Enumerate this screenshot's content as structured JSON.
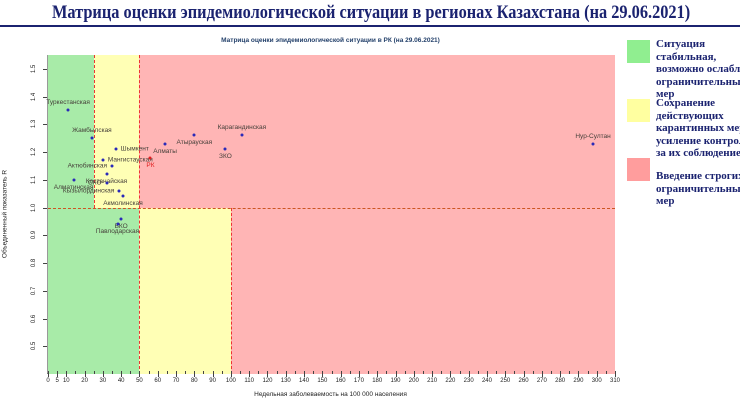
{
  "page": {
    "title": "Матрица оценки эпидемиологической ситуации в регионах Казахстана (на 29.06.2021)"
  },
  "chart_data": {
    "type": "scatter",
    "title": "Матрица оценки эпидемиологической ситуации в РК (на 29.06.2021)",
    "xlabel": "Недельная заболеваемость на 100 000 населения",
    "ylabel": "Объединенный показатель R",
    "xlim": [
      0,
      310
    ],
    "ylim": [
      0.4,
      1.55
    ],
    "x_ticks": [
      0,
      5,
      10,
      20,
      30,
      40,
      50,
      60,
      70,
      80,
      90,
      100,
      110,
      120,
      130,
      140,
      150,
      160,
      170,
      180,
      190,
      200,
      210,
      220,
      230,
      240,
      250,
      260,
      270,
      280,
      290,
      300,
      310
    ],
    "y_ticks": [
      1.5,
      1.4,
      1.3,
      1.2,
      1.1,
      1.0,
      0.9,
      0.8,
      0.7,
      0.6,
      0.5
    ],
    "grid": false,
    "legend_position": "right",
    "zone_colors": {
      "green": "#a8eba8",
      "yellow": "#ffffb5",
      "pink": "#ffb5b5"
    },
    "zones": [
      {
        "x0": 0,
        "x1": 25,
        "r0": 1.0,
        "r1": 1.55,
        "color": "green"
      },
      {
        "x0": 25,
        "x1": 50,
        "r0": 1.0,
        "r1": 1.55,
        "color": "yellow"
      },
      {
        "x0": 50,
        "x1": 310,
        "r0": 1.0,
        "r1": 1.55,
        "color": "pink"
      },
      {
        "x0": 0,
        "x1": 50,
        "r0": 0.4,
        "r1": 1.0,
        "color": "green"
      },
      {
        "x0": 50,
        "x1": 100,
        "r0": 0.4,
        "r1": 1.0,
        "color": "yellow"
      },
      {
        "x0": 100,
        "x1": 310,
        "r0": 0.4,
        "r1": 1.0,
        "color": "pink"
      }
    ],
    "threshold_lines": [
      {
        "orient": "h",
        "r": 1.0,
        "x0": 0,
        "x1": 310,
        "color": "#cc5522"
      },
      {
        "orient": "v",
        "x": 25,
        "r0": 1.0,
        "r1": 1.55,
        "color": "#ee3333"
      },
      {
        "orient": "v",
        "x": 50,
        "r0": 0.4,
        "r1": 1.55,
        "color": "#ee3333"
      },
      {
        "orient": "v",
        "x": 100,
        "r0": 0.4,
        "r1": 1.0,
        "color": "#ee3333"
      }
    ],
    "point_color": "#2a2ab8",
    "label_color": "#46403a",
    "points": [
      {
        "name": "Туркестанская",
        "x": 11,
        "r": 1.35,
        "label_pos": "above"
      },
      {
        "name": "Жамбылская",
        "x": 24,
        "r": 1.25,
        "label_pos": "above"
      },
      {
        "name": "Шымкент",
        "x": 37,
        "r": 1.21,
        "label_pos": "right"
      },
      {
        "name": "Мангистауская",
        "x": 30,
        "r": 1.17,
        "label_pos": "right"
      },
      {
        "name": "Актюбинская",
        "x": 35,
        "r": 1.15,
        "label_pos": "left"
      },
      {
        "name": "Костанайская",
        "x": 32,
        "r": 1.12,
        "label_pos": "below"
      },
      {
        "name": "Алматинская",
        "x": 14,
        "r": 1.1,
        "label_pos": "below"
      },
      {
        "name": "СКО",
        "x": 32,
        "r": 1.09,
        "label_pos": "left"
      },
      {
        "name": "Кызылординская",
        "x": 39,
        "r": 1.06,
        "label_pos": "left"
      },
      {
        "name": "Акмолинская",
        "x": 41,
        "r": 1.04,
        "label_pos": "below"
      },
      {
        "name": "ВКО",
        "x": 40,
        "r": 0.96,
        "label_pos": "below"
      },
      {
        "name": "Павлодарская",
        "x": 38,
        "r": 0.94,
        "label_pos": "below"
      },
      {
        "name": "Алматы",
        "x": 64,
        "r": 1.23,
        "label_pos": "below"
      },
      {
        "name": "РК",
        "x": 56,
        "r": 1.18,
        "label_pos": "below",
        "color": "#e02020"
      },
      {
        "name": "Атырауская",
        "x": 80,
        "r": 1.26,
        "label_pos": "below"
      },
      {
        "name": "ЗКО",
        "x": 97,
        "r": 1.21,
        "label_pos": "below"
      },
      {
        "name": "Карагандинская",
        "x": 106,
        "r": 1.26,
        "label_pos": "above"
      },
      {
        "name": "Нур-Султан",
        "x": 298,
        "r": 1.23,
        "label_pos": "above"
      }
    ]
  },
  "legend": {
    "items": [
      {
        "color": "#90ee90",
        "text": "Ситуация\nстабильная,\nвозможно ослабление\nограничительных\nмер"
      },
      {
        "color": "#ffffa0",
        "text": "Сохранение\nдействующих\nкарантинных мер и\nусиление контроля\nза их соблюдением"
      },
      {
        "color": "#ff9d9d",
        "text": "Введение строгих\nограничительных\nмер"
      }
    ]
  }
}
